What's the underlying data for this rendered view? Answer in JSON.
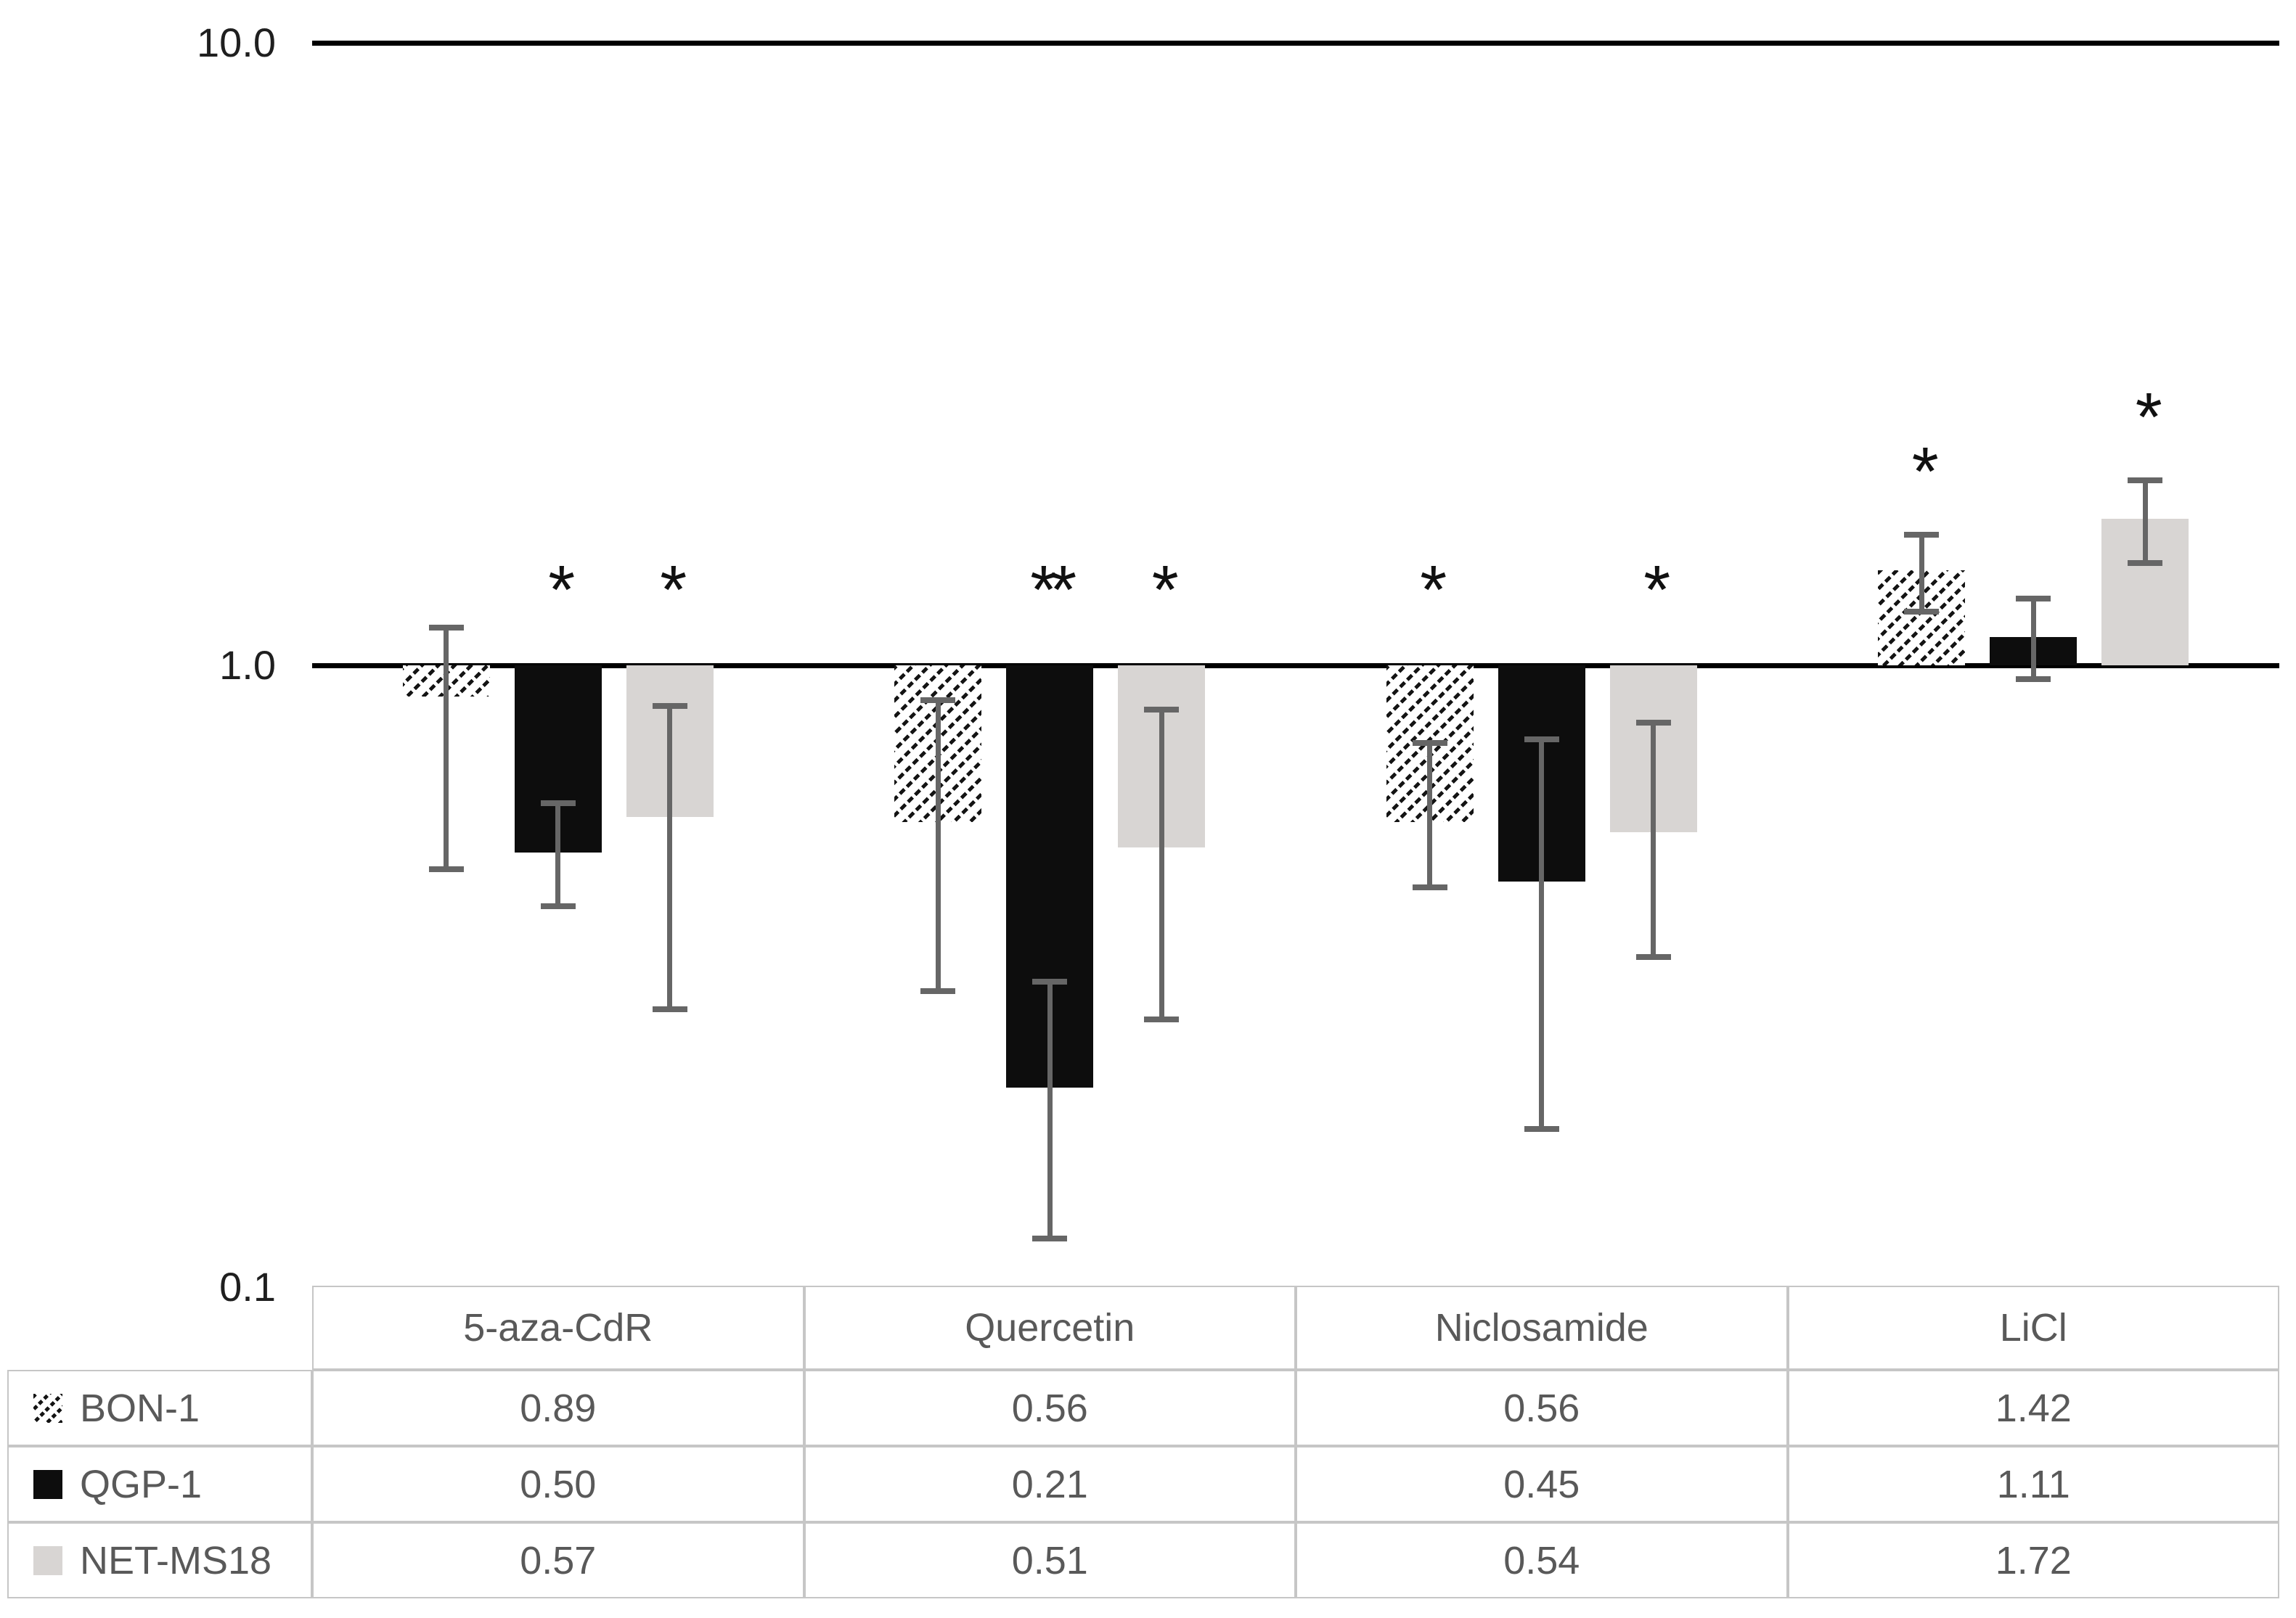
{
  "figure": {
    "type": "grouped-bar-chart-with-data-table",
    "background": "#ffffff"
  },
  "chart_data": {
    "type": "bar",
    "title": "",
    "xlabel": "",
    "ylabel": "",
    "yaxis": {
      "scale": "log",
      "ticks": [
        "10.0",
        "1.0",
        "0.1"
      ],
      "max": 10.0,
      "baseline": 1.0,
      "min": 0.1
    },
    "grid": "off",
    "legend_position": "table-left-column",
    "categories": [
      "5-aza-CdR",
      "Quercetin",
      "Niclosamide",
      "LiCl"
    ],
    "series": [
      {
        "name": "BON-1",
        "swatch": "hatched",
        "values": [
          0.89,
          0.56,
          0.56,
          1.42
        ],
        "err_hi": [
          1.15,
          0.88,
          0.75,
          1.62
        ],
        "err_lo": [
          0.47,
          0.3,
          0.44,
          1.22
        ],
        "sig": [
          "",
          "",
          "*",
          "*"
        ]
      },
      {
        "name": "QGP-1",
        "swatch": "black",
        "values": [
          0.5,
          0.21,
          0.45,
          1.11
        ],
        "err_hi": [
          0.6,
          0.31,
          0.76,
          1.28
        ],
        "err_lo": [
          0.41,
          0.12,
          0.18,
          0.95
        ],
        "sig": [
          "*",
          "**",
          "",
          ""
        ]
      },
      {
        "name": "NET-MS18",
        "swatch": "gray",
        "values": [
          0.57,
          0.51,
          0.54,
          1.72
        ],
        "err_hi": [
          0.86,
          0.85,
          0.81,
          1.98
        ],
        "err_lo": [
          0.28,
          0.27,
          0.34,
          1.46
        ],
        "sig": [
          "*",
          "*",
          "*",
          "*"
        ]
      }
    ],
    "annotations": {
      "significance_symbols": [
        "*",
        "**"
      ]
    }
  },
  "table": {
    "column_headers": [
      "5-aza-CdR",
      "Quercetin",
      "Niclosamide",
      "LiCl"
    ],
    "row_labels": [
      "BON-1",
      "QGP-1",
      "NET-MS18"
    ],
    "cells": [
      [
        "0.89",
        "0.56",
        "0.56",
        "1.42"
      ],
      [
        "0.50",
        "0.21",
        "0.45",
        "1.11"
      ],
      [
        "0.57",
        "0.51",
        "0.54",
        "1.72"
      ]
    ]
  },
  "colors": {
    "bar_black": "#0d0d0d",
    "bar_gray": "#d8d5d3",
    "hatch_stroke": "#141414",
    "whisker": "#666666",
    "axis_line": "#000000",
    "table_border": "#c6c6c6",
    "table_text": "#595959",
    "axis_text": "#1f1f1f",
    "sig_text": "#111111"
  }
}
